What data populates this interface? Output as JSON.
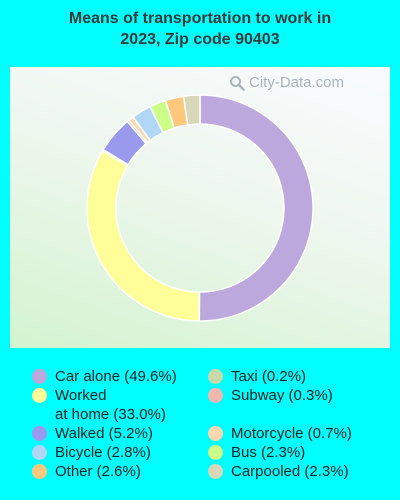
{
  "chart_data": {
    "type": "pie",
    "style": "donut",
    "title_lines": [
      "Means of transportation to work in",
      "2023, Zip code 90403"
    ],
    "watermark": "City-Data.com",
    "slices": [
      {
        "label": "Car alone",
        "value": 49.6,
        "color": "#bca8dc",
        "legend": "Car alone (49.6%)"
      },
      {
        "label": "Worked at home",
        "value": 33.0,
        "color": "#ffff99",
        "legend": "Worked\nat home (33.0%)"
      },
      {
        "label": "Taxi",
        "value": 0.2,
        "color": "#c8d8a8",
        "legend": "Taxi (0.2%)"
      },
      {
        "label": "Walked",
        "value": 5.2,
        "color": "#9999ee",
        "legend": "Walked (5.2%)"
      },
      {
        "label": "Subway",
        "value": 0.3,
        "color": "#f2b8b0",
        "legend": "Subway (0.3%)"
      },
      {
        "label": "Motorcycle",
        "value": 0.7,
        "color": "#fbd9b0",
        "legend": "Motorcycle (0.7%)"
      },
      {
        "label": "Bicycle",
        "value": 2.8,
        "color": "#b0d8f6",
        "legend": "Bicycle (2.8%)"
      },
      {
        "label": "Bus",
        "value": 2.3,
        "color": "#ccff88",
        "legend": "Bus (2.3%)"
      },
      {
        "label": "Other",
        "value": 2.6,
        "color": "#ffc87c",
        "legend": "Other (2.6%)"
      },
      {
        "label": "Carpooled",
        "value": 2.3,
        "color": "#d8d8b8",
        "legend": "Carpooled (2.3%)"
      }
    ],
    "legend_order": [
      "Car alone",
      "Worked at home",
      "Walked",
      "Bicycle",
      "Other",
      "Taxi",
      "Subway",
      "Motorcycle",
      "Bus",
      "Carpooled"
    ]
  }
}
